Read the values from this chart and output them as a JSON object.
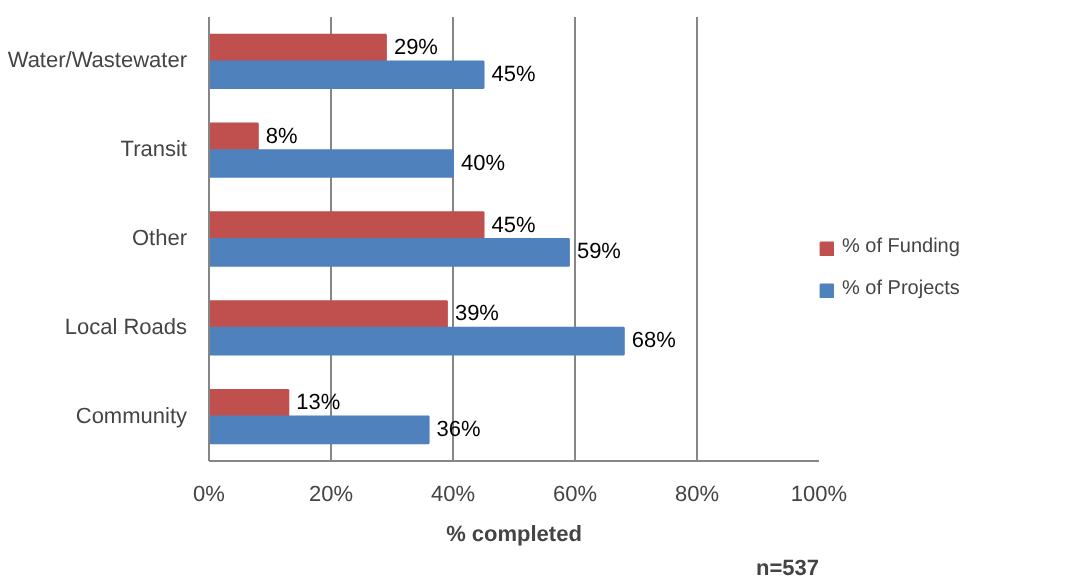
{
  "chart_data": {
    "type": "bar",
    "orientation": "horizontal",
    "xlabel": "% completed",
    "categories": [
      "Water/Wastewater",
      "Transit",
      "Other",
      "Local Roads",
      "Community"
    ],
    "series": [
      {
        "name": "% of Funding",
        "color": "#c0504d",
        "values": [
          29,
          8,
          45,
          39,
          13
        ],
        "value_labels": [
          "29%",
          "8%",
          "45%",
          "39%",
          "13%"
        ]
      },
      {
        "name": "% of Projects",
        "color": "#4f81bd",
        "values": [
          45,
          40,
          59,
          68,
          36
        ],
        "value_labels": [
          "45%",
          "40%",
          "59%",
          "68%",
          "36%"
        ]
      }
    ],
    "xlim": [
      0,
      100
    ],
    "xticks": [
      {
        "value": 0,
        "label": "0%"
      },
      {
        "value": 20,
        "label": "20%"
      },
      {
        "value": 40,
        "label": "40%"
      },
      {
        "value": 60,
        "label": "60%"
      },
      {
        "value": 80,
        "label": "80%"
      },
      {
        "value": 100,
        "label": "100%"
      }
    ],
    "grid": "x",
    "legend": "right",
    "annotations": [
      "n=537"
    ]
  }
}
